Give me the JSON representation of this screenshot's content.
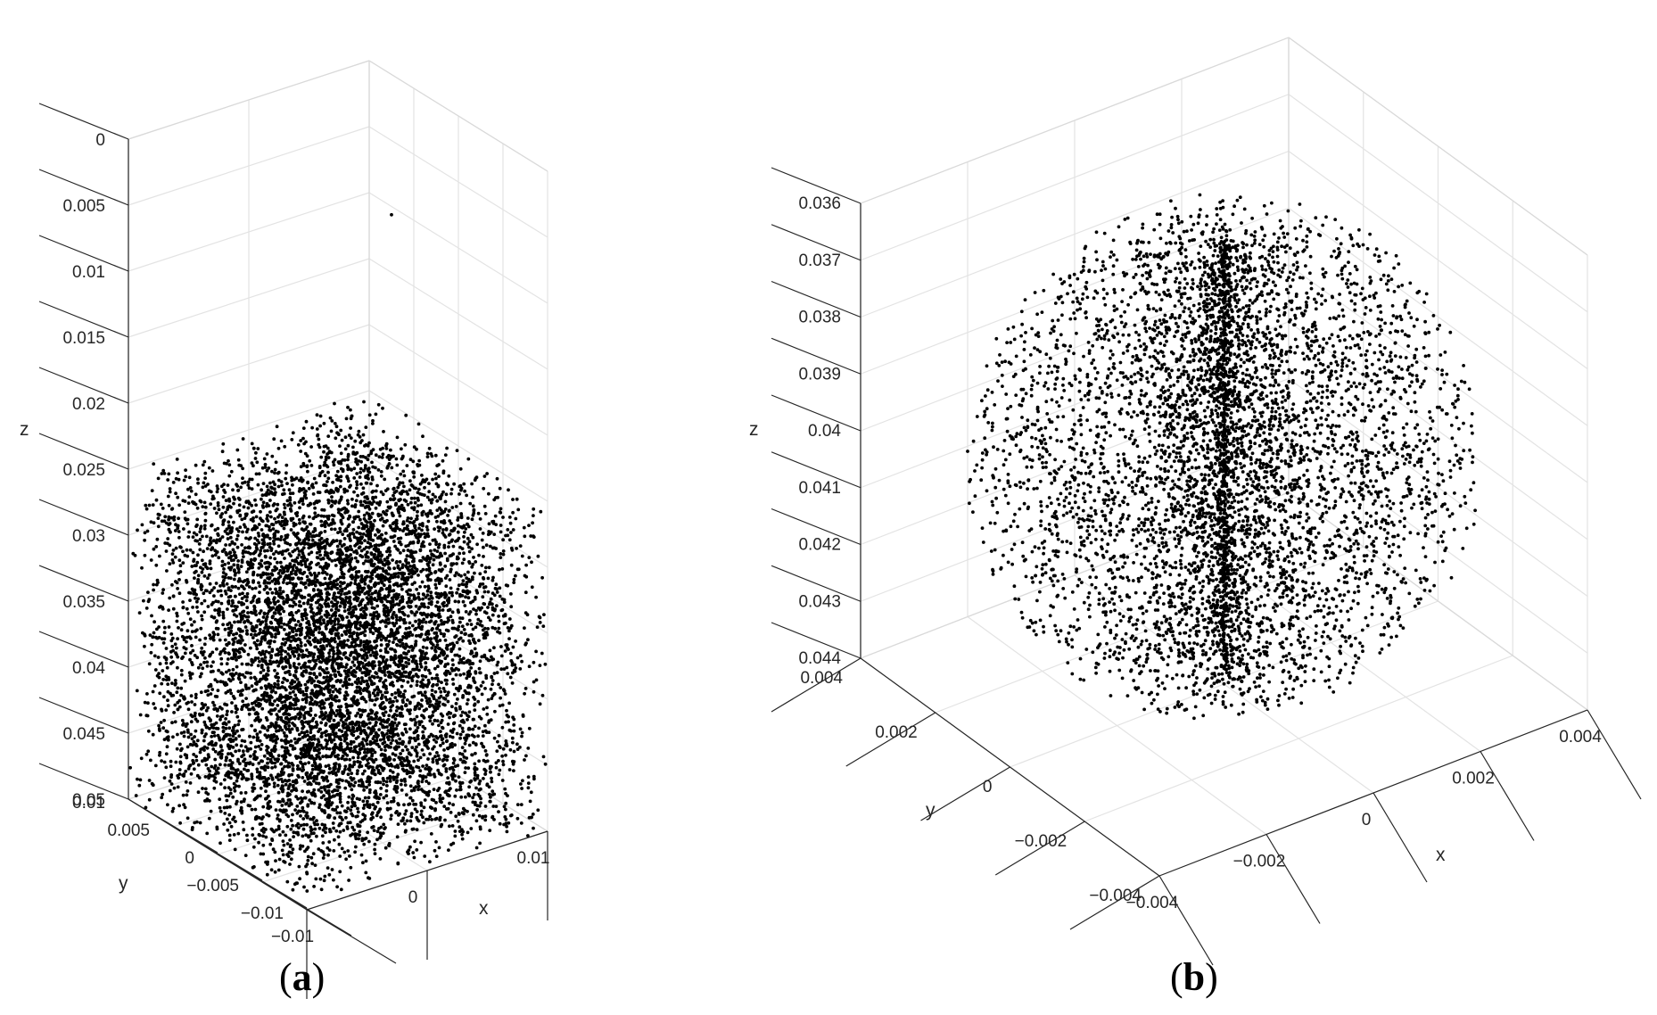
{
  "chart_data": [
    {
      "type": "scatter",
      "panel_label": "a",
      "xlabel": "x",
      "ylabel": "y",
      "zlabel": "z",
      "x_ticks": [
        "−0.01",
        "0",
        "0.01"
      ],
      "y_ticks": [
        "−0.01",
        "−0.005",
        "0",
        "0.005",
        "0.01"
      ],
      "z_ticks": [
        "0",
        "0.005",
        "0.01",
        "0.015",
        "0.02",
        "0.025",
        "0.03",
        "0.035",
        "0.04",
        "0.045",
        "0.05"
      ],
      "xlim": [
        -0.01,
        0.01
      ],
      "ylim": [
        -0.01,
        0.01
      ],
      "zlim": [
        0,
        0.05
      ],
      "z_direction": "reversed",
      "grid": true,
      "marker_color": "#000000",
      "point_cloud": {
        "shape": "uniform cube",
        "x_range": [
          -0.01,
          0.01
        ],
        "y_range": [
          -0.01,
          0.01
        ],
        "z_range": [
          0.025,
          0.05
        ],
        "approx_count": 8000
      },
      "outliers": [
        {
          "x": 0.0,
          "y": -0.006,
          "z": 0.002
        }
      ]
    },
    {
      "type": "scatter",
      "panel_label": "b",
      "xlabel": "x",
      "ylabel": "y",
      "zlabel": "z",
      "x_ticks": [
        "−0.004",
        "−0.002",
        "0",
        "0.002",
        "0.004"
      ],
      "y_ticks": [
        "−0.004",
        "−0.002",
        "0",
        "0.002",
        "0.004"
      ],
      "z_ticks": [
        "0.036",
        "0.037",
        "0.038",
        "0.039",
        "0.04",
        "0.041",
        "0.042",
        "0.043",
        "0.044"
      ],
      "xlim": [
        -0.004,
        0.004
      ],
      "ylim": [
        -0.004,
        0.004
      ],
      "zlim": [
        0.036,
        0.044
      ],
      "z_direction": "reversed",
      "grid": true,
      "marker_color": "#000000",
      "point_cloud": {
        "shape": "sphere, denser along central axis",
        "center": [
          0,
          0,
          0.04
        ],
        "radius": 0.004,
        "approx_count": 6000
      }
    }
  ]
}
